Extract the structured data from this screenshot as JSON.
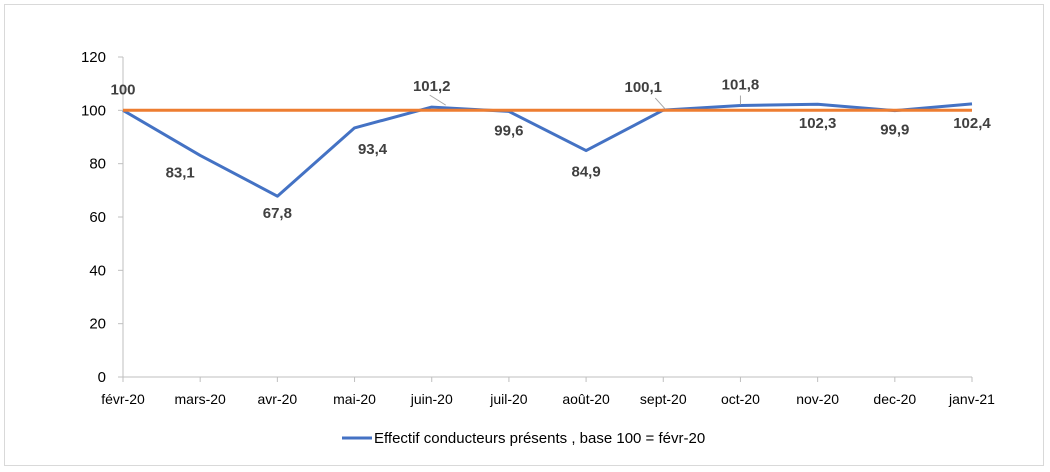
{
  "chart_data": {
    "type": "line",
    "title": "",
    "xlabel": "",
    "ylabel": "",
    "categories": [
      "févr-20",
      "mars-20",
      "avr-20",
      "mai-20",
      "juin-20",
      "juil-20",
      "août-20",
      "sept-20",
      "oct-20",
      "nov-20",
      "dec-20",
      "janv-21"
    ],
    "series": [
      {
        "name": "Effectif conducteurs présents , base 100 = févr-20",
        "values": [
          100,
          83.1,
          67.8,
          93.4,
          101.2,
          99.6,
          84.9,
          100.1,
          101.8,
          102.3,
          99.9,
          102.4
        ],
        "data_labels": [
          "100",
          "83,1",
          "67,8",
          "93,4",
          "101,2",
          "99,6",
          "84,9",
          "100,1",
          "101,8",
          "102,3",
          "99,9",
          "102,4"
        ],
        "color": "#4472C4"
      },
      {
        "values": [
          100,
          100,
          100,
          100,
          100,
          100,
          100,
          100,
          100,
          100,
          100,
          100
        ],
        "color": "#ED7D31"
      }
    ],
    "ylim": [
      0,
      120
    ],
    "yticks": [
      0,
      20,
      40,
      60,
      80,
      100,
      120
    ],
    "grid": false,
    "legend_position": "bottom"
  }
}
